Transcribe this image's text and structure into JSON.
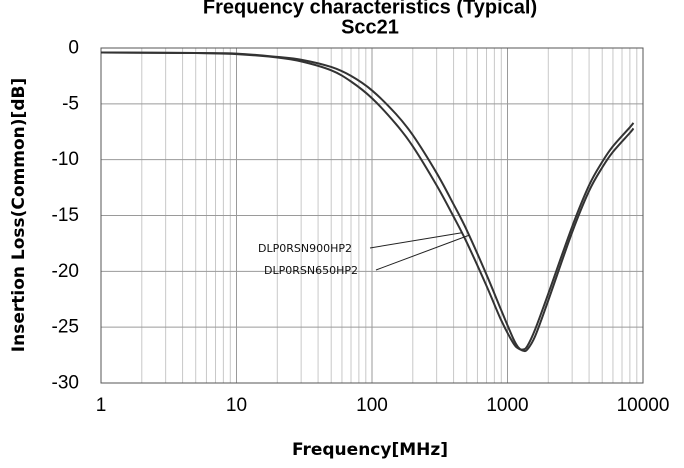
{
  "chart_data": {
    "type": "line",
    "title": "Frequency characteristics (Typical) Scc21",
    "title_line1": "Frequency characteristics (Typical)",
    "title_line2": "Scc21",
    "xlabel": "Frequency[MHz]",
    "ylabel": "Insertion Loss(Common)[dB]",
    "xscale": "log",
    "xlim": [
      1,
      10000
    ],
    "ylim": [
      -30,
      0
    ],
    "xticks": [
      "1",
      "10",
      "100",
      "1000",
      "10000"
    ],
    "yticks": [
      "0",
      "-5",
      "-10",
      "-15",
      "-20",
      "-25",
      "-30"
    ],
    "grid": true,
    "series": [
      {
        "name": "DLP0RSN900HP2",
        "x": [
          1,
          5,
          10,
          20,
          30,
          50,
          70,
          100,
          150,
          200,
          300,
          400,
          500,
          700,
          900,
          1100,
          1200,
          1300,
          1400,
          1600,
          2000,
          3000,
          4000,
          5000,
          6000,
          8000,
          8500
        ],
        "y": [
          -0.4,
          -0.45,
          -0.55,
          -0.85,
          -1.2,
          -2.0,
          -3.0,
          -4.5,
          -6.8,
          -8.8,
          -12.3,
          -15.1,
          -17.4,
          -21.3,
          -24.4,
          -26.4,
          -26.9,
          -27.0,
          -26.7,
          -25.2,
          -22.0,
          -16.0,
          -12.3,
          -10.2,
          -8.8,
          -7.1,
          -6.7
        ]
      },
      {
        "name": "DLP0RSN650HP2",
        "x": [
          1,
          5,
          10,
          20,
          30,
          50,
          70,
          100,
          150,
          200,
          300,
          400,
          500,
          700,
          900,
          1100,
          1200,
          1300,
          1400,
          1600,
          2000,
          3000,
          4000,
          5000,
          6000,
          8000,
          8500
        ],
        "y": [
          -0.4,
          -0.45,
          -0.5,
          -0.8,
          -1.05,
          -1.7,
          -2.5,
          -3.8,
          -5.9,
          -7.8,
          -11.2,
          -14.0,
          -16.3,
          -20.3,
          -23.5,
          -26.0,
          -26.8,
          -27.1,
          -27.0,
          -25.8,
          -22.6,
          -16.5,
          -12.8,
          -10.7,
          -9.3,
          -7.6,
          -7.2
        ]
      }
    ],
    "annotations": [
      {
        "text": "DLP0RSN900HP2",
        "series": "DLP0RSN900HP2"
      },
      {
        "text": "DLP0RSN650HP2",
        "series": "DLP0RSN650HP2"
      }
    ]
  }
}
